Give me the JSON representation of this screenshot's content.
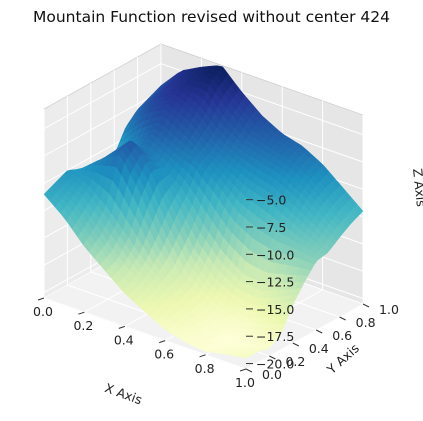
{
  "chart_data": {
    "type": "surface",
    "title": "Mountain Function revised without center 424",
    "xlabel": "X Axis",
    "ylabel": "Y Axis",
    "zlabel": "Z Axis",
    "xlim": [
      0,
      1
    ],
    "ylim": [
      0,
      1
    ],
    "zlim": [
      -20.5,
      -3.2
    ],
    "x_ticks": [
      "0.0",
      "0.2",
      "0.4",
      "0.6",
      "0.8",
      "1.0"
    ],
    "y_ticks": [
      "0.0",
      "0.2",
      "0.4",
      "0.6",
      "0.8",
      "1.0"
    ],
    "z_ticks": [
      "−20.0",
      "−17.5",
      "−15.0",
      "−12.5",
      "−10.0",
      "−7.5",
      "−5.0"
    ],
    "colormap": "YlGnBu_r",
    "grid": true,
    "x": [
      0.0,
      0.1,
      0.2,
      0.3,
      0.4,
      0.5,
      0.6,
      0.7,
      0.8,
      0.9,
      1.0
    ],
    "y": [
      0.0,
      0.1,
      0.2,
      0.3,
      0.4,
      0.5,
      0.6,
      0.7,
      0.8,
      0.9,
      1.0
    ],
    "z_rows_by_y": [
      [
        -11.0,
        -12.5,
        -14.5,
        -16.0,
        -17.5,
        -18.5,
        -19.5,
        -20.0,
        -20.2,
        -19.8,
        -19.5
      ],
      [
        -10.5,
        -11.5,
        -13.5,
        -15.5,
        -17.0,
        -18.0,
        -19.0,
        -19.8,
        -20.3,
        -20.0,
        -19.5
      ],
      [
        -10.0,
        -10.5,
        -12.0,
        -14.0,
        -16.0,
        -17.5,
        -18.8,
        -19.8,
        -20.5,
        -20.2,
        -19.8
      ],
      [
        -10.5,
        -9.0,
        -8.0,
        -11.0,
        -14.5,
        -17.0,
        -18.5,
        -19.5,
        -20.0,
        -19.5,
        -19.0
      ],
      [
        -11.5,
        -9.0,
        -7.0,
        -9.0,
        -12.5,
        -15.5,
        -17.5,
        -18.5,
        -18.8,
        -18.0,
        -17.0
      ],
      [
        -12.0,
        -10.0,
        -8.5,
        -9.5,
        -11.0,
        -13.5,
        -15.5,
        -16.8,
        -17.0,
        -16.3,
        -15.5
      ],
      [
        -11.0,
        -9.0,
        -7.5,
        -8.5,
        -9.0,
        -10.5,
        -12.5,
        -13.5,
        -14.0,
        -14.0,
        -14.2
      ],
      [
        -9.0,
        -7.0,
        -6.0,
        -7.0,
        -8.5,
        -9.5,
        -10.5,
        -11.0,
        -12.0,
        -13.0,
        -14.0
      ],
      [
        -8.0,
        -6.0,
        -5.0,
        -5.8,
        -7.5,
        -8.5,
        -9.0,
        -9.5,
        -10.5,
        -11.8,
        -13.2
      ],
      [
        -7.5,
        -5.5,
        -4.5,
        -4.0,
        -6.0,
        -7.5,
        -8.0,
        -8.5,
        -9.5,
        -11.0,
        -12.5
      ],
      [
        -7.0,
        -5.0,
        -4.0,
        -3.2,
        -5.0,
        -6.5,
        -7.5,
        -8.0,
        -9.0,
        -10.5,
        -12.0
      ]
    ]
  }
}
